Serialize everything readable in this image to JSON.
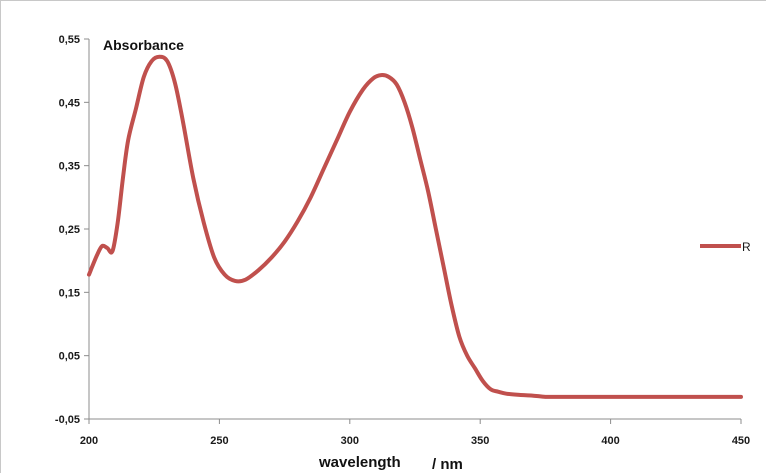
{
  "chart_data": {
    "type": "line",
    "title": "Absorbance",
    "xlabel": "wavelength",
    "xlabel_unit": "/ nm",
    "ylabel": "",
    "xlim": [
      200,
      450
    ],
    "ylim": [
      -0.05,
      0.55
    ],
    "x_ticks": [
      200,
      250,
      300,
      350,
      400,
      450
    ],
    "x_tick_labels": [
      "200",
      "250",
      "300",
      "350",
      "400",
      "450"
    ],
    "y_ticks": [
      -0.05,
      0.05,
      0.15,
      0.25,
      0.35,
      0.45,
      0.55
    ],
    "y_tick_labels": [
      "-0,05",
      "0,05",
      "0,15",
      "0,25",
      "0,35",
      "0,45",
      "0,55"
    ],
    "grid": false,
    "legend_position": "right",
    "series": [
      {
        "name": "R",
        "color": "#c0504d",
        "x": [
          200,
          203,
          205,
          207,
          209,
          211,
          213,
          215,
          218,
          221,
          224,
          227,
          230,
          233,
          236,
          240,
          244,
          248,
          252,
          256,
          260,
          265,
          270,
          275,
          280,
          285,
          290,
          295,
          300,
          305,
          309,
          312,
          315,
          318,
          321,
          324,
          327,
          330,
          333,
          336,
          339,
          342,
          345,
          348,
          351,
          354,
          357,
          360,
          365,
          370,
          375,
          380,
          390,
          400,
          410,
          420,
          430,
          440,
          450
        ],
        "y": [
          0.178,
          0.208,
          0.223,
          0.22,
          0.215,
          0.26,
          0.33,
          0.39,
          0.44,
          0.49,
          0.515,
          0.522,
          0.515,
          0.48,
          0.42,
          0.33,
          0.26,
          0.205,
          0.178,
          0.168,
          0.17,
          0.185,
          0.205,
          0.23,
          0.262,
          0.3,
          0.345,
          0.39,
          0.435,
          0.47,
          0.488,
          0.493,
          0.49,
          0.478,
          0.45,
          0.41,
          0.36,
          0.31,
          0.25,
          0.19,
          0.13,
          0.08,
          0.05,
          0.03,
          0.01,
          -0.003,
          -0.007,
          -0.01,
          -0.012,
          -0.013,
          -0.015,
          -0.015,
          -0.015,
          -0.015,
          -0.015,
          -0.015,
          -0.015,
          -0.015,
          -0.015
        ]
      }
    ]
  }
}
